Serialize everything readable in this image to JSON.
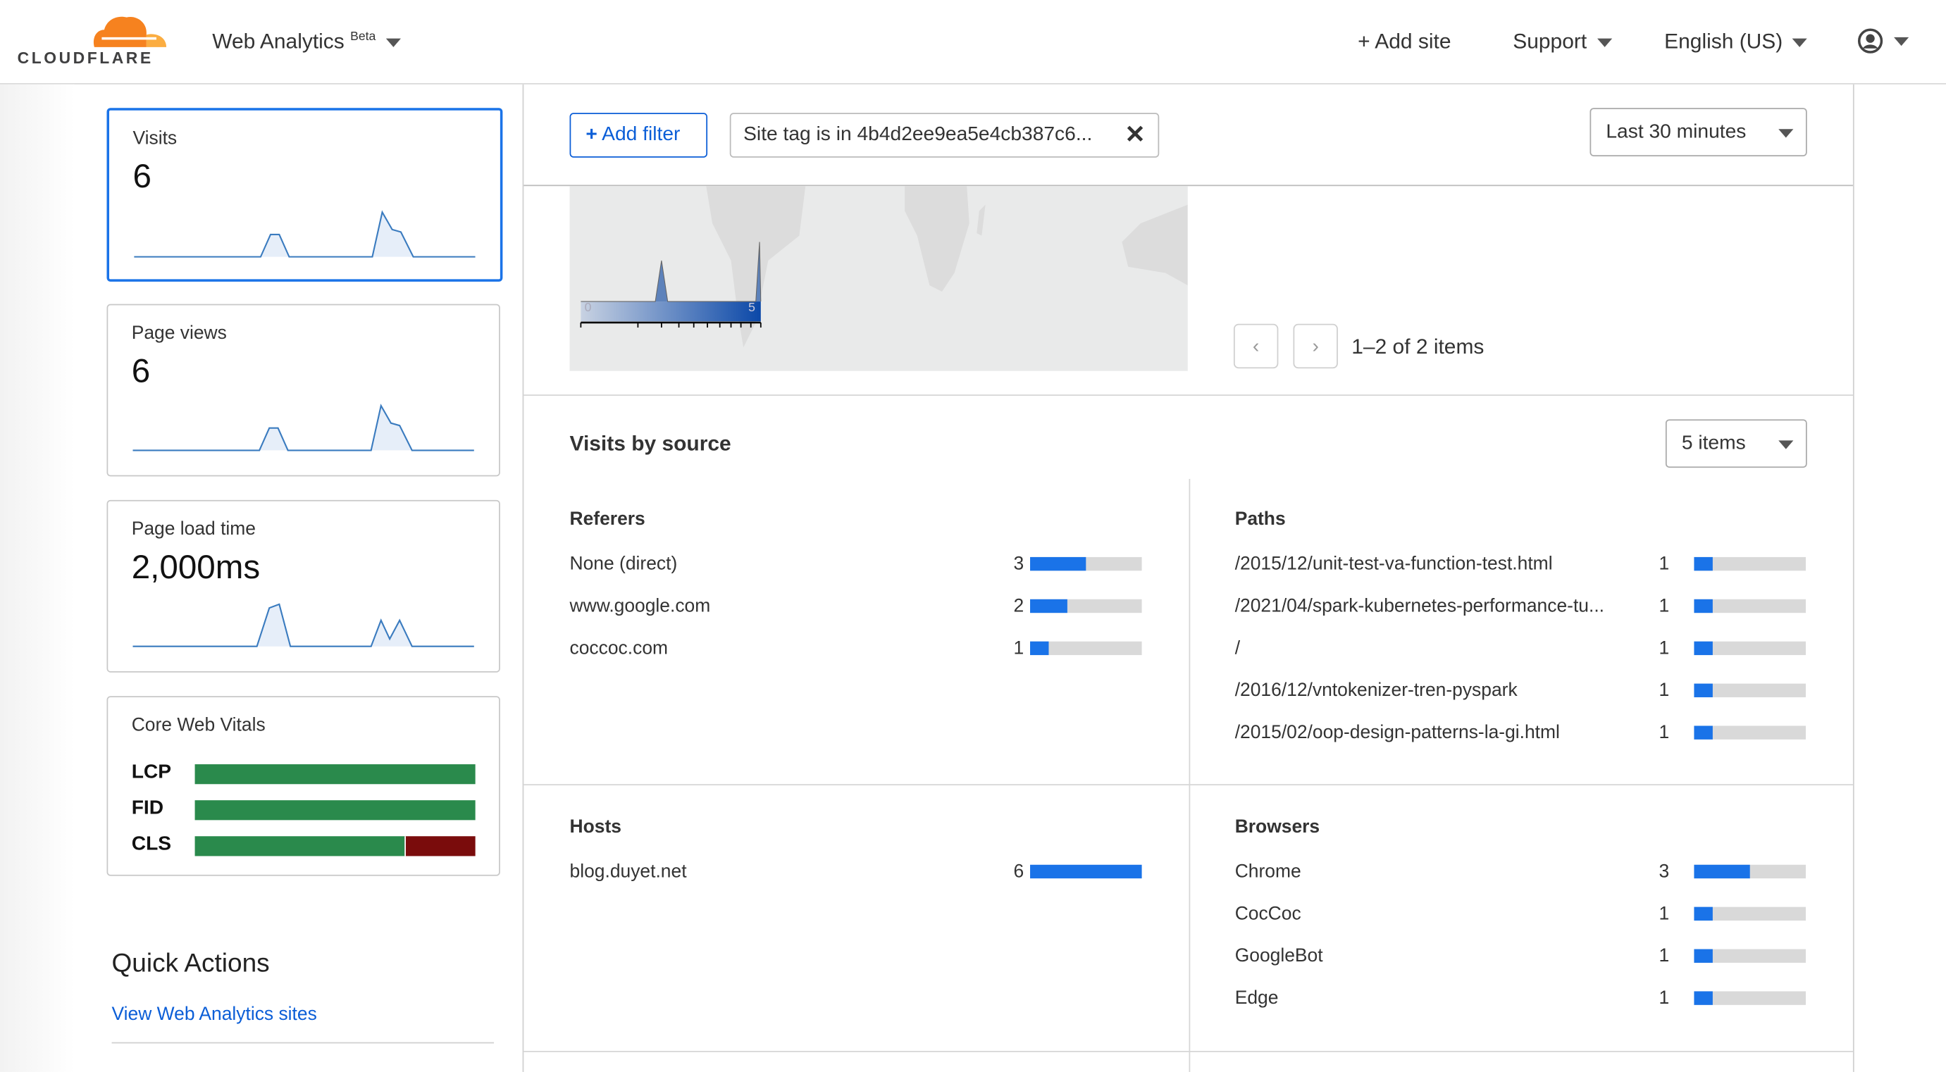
{
  "header": {
    "brand": "CLOUDFLARE",
    "app_name": "Web Analytics",
    "app_badge": "Beta",
    "add_site": "Add site",
    "support": "Support",
    "language": "English (US)"
  },
  "colors": {
    "accent": "#1a73e8",
    "brand_orange": "#f6821f",
    "good": "#2a8a4c",
    "poor": "#7a0c0c"
  },
  "sidebar": {
    "cards": [
      {
        "label": "Visits",
        "value": "6"
      },
      {
        "label": "Page views",
        "value": "6"
      },
      {
        "label": "Page load time",
        "value": "2,000ms"
      }
    ],
    "core_web_vitals": {
      "title": "Core Web Vitals",
      "metrics": [
        {
          "name": "LCP",
          "good": 1.0,
          "poor": 0
        },
        {
          "name": "FID",
          "good": 1.0,
          "poor": 0
        },
        {
          "name": "CLS",
          "good": 0.75,
          "poor": 0.25
        }
      ]
    },
    "quick_actions": {
      "title": "Quick Actions",
      "link": "View Web Analytics sites"
    }
  },
  "filters": {
    "add_filter": "Add filter",
    "chip": "Site tag is in 4b4d2ee9ea5e4cb387c6...",
    "time_range": "Last 30 minutes"
  },
  "map": {
    "legend_min": "0",
    "legend_max": "5",
    "pagination": "1–2 of 2 items"
  },
  "visits_by_source": {
    "title": "Visits by source",
    "items_select": "5 items",
    "referers": {
      "title": "Referers",
      "max": 6,
      "rows": [
        {
          "name": "None (direct)",
          "count": 3
        },
        {
          "name": "www.google.com",
          "count": 2
        },
        {
          "name": "coccoc.com",
          "count": 1
        }
      ]
    },
    "paths": {
      "title": "Paths",
      "max": 6,
      "rows": [
        {
          "name": "/2015/12/unit-test-va-function-test.html",
          "count": 1
        },
        {
          "name": "/2021/04/spark-kubernetes-performance-tu...",
          "count": 1
        },
        {
          "name": "/",
          "count": 1
        },
        {
          "name": "/2016/12/vntokenizer-tren-pyspark",
          "count": 1
        },
        {
          "name": "/2015/02/oop-design-patterns-la-gi.html",
          "count": 1
        }
      ]
    },
    "hosts": {
      "title": "Hosts",
      "max": 6,
      "rows": [
        {
          "name": "blog.duyet.net",
          "count": 6
        }
      ]
    },
    "browsers": {
      "title": "Browsers",
      "max": 6,
      "rows": [
        {
          "name": "Chrome",
          "count": 3
        },
        {
          "name": "CocCoc",
          "count": 1
        },
        {
          "name": "GoogleBot",
          "count": 1
        },
        {
          "name": "Edge",
          "count": 1
        }
      ]
    }
  }
}
